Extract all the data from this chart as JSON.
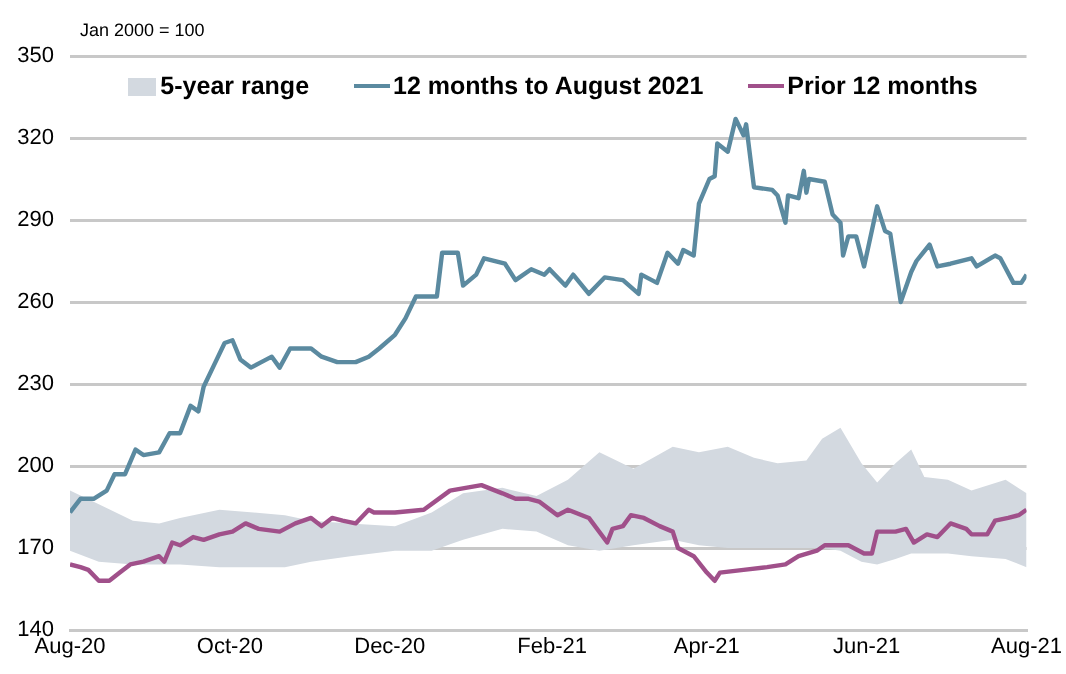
{
  "chart_data": {
    "type": "line",
    "annotations": [
      "Jan 2000 = 100"
    ],
    "xlim": [
      "2020-08-01",
      "2021-08-01"
    ],
    "xticks": [
      {
        "value": "2020-08-01",
        "label": "Aug-20"
      },
      {
        "value": "2020-10-01",
        "label": "Oct-20"
      },
      {
        "value": "2020-12-01",
        "label": "Dec-20"
      },
      {
        "value": "2021-02-01",
        "label": "Feb-21"
      },
      {
        "value": "2021-04-01",
        "label": "Apr-21"
      },
      {
        "value": "2021-06-01",
        "label": "Jun-21"
      },
      {
        "value": "2021-08-01",
        "label": "Aug-21"
      }
    ],
    "ylim": [
      140,
      350
    ],
    "yticks": [
      140,
      170,
      200,
      230,
      260,
      290,
      320,
      350
    ],
    "grid": "y",
    "legend": "top",
    "marker": "none",
    "series": [
      {
        "name": "5-year range",
        "type": "area",
        "color": "#d3d9e0",
        "x": [
          "2020-08-01",
          "2020-08-12",
          "2020-08-25",
          "2020-09-04",
          "2020-09-12",
          "2020-09-27",
          "2020-10-10",
          "2020-10-22",
          "2020-11-01",
          "2020-11-16",
          "2020-12-03",
          "2020-12-17",
          "2020-12-29",
          "2021-01-13",
          "2021-01-26",
          "2021-02-07",
          "2021-02-19",
          "2021-03-04",
          "2021-03-19",
          "2021-03-29",
          "2021-04-09",
          "2021-04-19",
          "2021-04-28",
          "2021-05-09",
          "2021-05-15",
          "2021-05-22",
          "2021-05-30",
          "2021-06-05",
          "2021-06-12",
          "2021-06-18",
          "2021-06-23",
          "2021-07-02",
          "2021-07-11",
          "2021-07-24",
          "2021-08-01"
        ],
        "values": [
          null,
          null,
          null,
          null,
          null,
          null,
          null,
          null,
          null,
          null,
          null,
          null,
          null,
          null,
          null,
          null,
          null,
          null,
          null,
          null,
          null,
          null,
          null,
          null,
          null,
          null,
          null,
          null,
          null,
          null,
          null,
          null,
          null,
          null,
          null
        ],
        "upper": [
          191,
          186,
          180,
          179,
          181,
          184,
          183,
          182,
          180,
          179,
          178,
          183,
          190,
          192,
          189,
          195,
          205,
          199,
          207,
          205,
          207,
          203,
          201,
          202,
          210,
          214,
          201,
          194,
          201,
          206,
          196,
          195,
          191,
          195,
          190
        ],
        "lower": [
          169,
          165,
          164,
          164,
          164,
          163,
          163,
          163,
          165,
          167,
          169,
          169,
          173,
          177,
          176,
          171,
          169,
          171,
          173,
          171,
          170,
          170,
          170,
          170,
          170,
          169,
          165,
          164,
          166,
          168,
          168,
          168,
          167,
          166,
          163
        ]
      },
      {
        "name": "12 months to August 2021",
        "color": "#5b8aa0",
        "x": [
          "2020-08-01",
          "2020-08-05",
          "2020-08-10",
          "2020-08-15",
          "2020-08-18",
          "2020-08-22",
          "2020-08-26",
          "2020-08-29",
          "2020-09-04",
          "2020-09-08",
          "2020-09-12",
          "2020-09-16",
          "2020-09-19",
          "2020-09-21",
          "2020-09-25",
          "2020-09-29",
          "2020-10-02",
          "2020-10-05",
          "2020-10-09",
          "2020-10-13",
          "2020-10-17",
          "2020-10-20",
          "2020-10-24",
          "2020-11-01",
          "2020-11-05",
          "2020-11-11",
          "2020-11-18",
          "2020-11-23",
          "2020-11-27",
          "2020-12-03",
          "2020-12-07",
          "2020-12-11",
          "2020-12-15",
          "2020-12-19",
          "2020-12-21",
          "2020-12-27",
          "2020-12-29",
          "2021-01-03",
          "2021-01-06",
          "2021-01-14",
          "2021-01-18",
          "2021-01-24",
          "2021-01-29",
          "2021-01-31",
          "2021-02-06",
          "2021-02-09",
          "2021-02-15",
          "2021-02-21",
          "2021-02-28",
          "2021-03-06",
          "2021-03-07",
          "2021-03-13",
          "2021-03-17",
          "2021-03-21",
          "2021-03-23",
          "2021-03-27",
          "2021-03-29",
          "2021-04-02",
          "2021-04-04",
          "2021-04-05",
          "2021-04-09",
          "2021-04-12",
          "2021-04-15",
          "2021-04-16",
          "2021-04-19",
          "2021-04-26",
          "2021-04-28",
          "2021-05-01",
          "2021-05-02",
          "2021-05-06",
          "2021-05-08",
          "2021-05-09",
          "2021-05-10",
          "2021-05-16",
          "2021-05-19",
          "2021-05-22",
          "2021-05-23",
          "2021-05-25",
          "2021-05-28",
          "2021-05-31",
          "2021-06-05",
          "2021-06-08",
          "2021-06-10",
          "2021-06-14",
          "2021-06-18",
          "2021-06-20",
          "2021-06-25",
          "2021-06-28",
          "2021-07-03",
          "2021-07-11",
          "2021-07-13",
          "2021-07-20",
          "2021-07-22",
          "2021-07-27",
          "2021-07-30",
          "2021-08-01"
        ],
        "values": [
          183,
          188,
          188,
          191,
          197,
          197,
          206,
          204,
          205,
          212,
          212,
          222,
          220,
          229,
          237,
          245,
          246,
          239,
          236,
          238,
          240,
          236,
          243,
          243,
          240,
          238,
          238,
          240,
          243,
          248,
          254,
          262,
          262,
          262,
          278,
          278,
          266,
          270,
          276,
          274,
          268,
          272,
          270,
          272,
          266,
          270,
          263,
          269,
          268,
          263,
          270,
          267,
          278,
          274,
          279,
          277,
          296,
          305,
          306,
          318,
          315,
          327,
          321,
          325,
          302,
          301,
          299,
          289,
          299,
          298,
          308,
          300,
          305,
          304,
          292,
          289,
          277,
          284,
          284,
          273,
          295,
          286,
          285,
          260,
          271,
          275,
          281,
          273,
          274,
          276,
          273,
          277,
          276,
          267,
          267,
          270
        ]
      },
      {
        "name": "Prior 12 months",
        "color": "#a0508a",
        "x": [
          "2020-08-01",
          "2020-08-05",
          "2020-08-08",
          "2020-08-12",
          "2020-08-16",
          "2020-08-20",
          "2020-08-24",
          "2020-08-29",
          "2020-09-04",
          "2020-09-06",
          "2020-09-09",
          "2020-09-12",
          "2020-09-17",
          "2020-09-21",
          "2020-09-27",
          "2020-10-02",
          "2020-10-07",
          "2020-10-12",
          "2020-10-20",
          "2020-10-26",
          "2020-11-01",
          "2020-11-05",
          "2020-11-09",
          "2020-11-13",
          "2020-11-18",
          "2020-11-23",
          "2020-11-25",
          "2020-12-03",
          "2020-12-14",
          "2020-12-24",
          "2021-01-05",
          "2021-01-13",
          "2021-01-18",
          "2021-01-23",
          "2021-01-27",
          "2021-02-03",
          "2021-02-07",
          "2021-02-15",
          "2021-02-22",
          "2021-02-24",
          "2021-02-28",
          "2021-03-03",
          "2021-03-08",
          "2021-03-14",
          "2021-03-19",
          "2021-03-21",
          "2021-03-27",
          "2021-04-01",
          "2021-04-04",
          "2021-04-06",
          "2021-04-15",
          "2021-04-24",
          "2021-05-01",
          "2021-05-06",
          "2021-05-13",
          "2021-05-16",
          "2021-05-25",
          "2021-05-31",
          "2021-06-03",
          "2021-06-05",
          "2021-06-12",
          "2021-06-16",
          "2021-06-19",
          "2021-06-24",
          "2021-06-28",
          "2021-07-03",
          "2021-07-09",
          "2021-07-11",
          "2021-07-17",
          "2021-07-20",
          "2021-07-25",
          "2021-07-29",
          "2021-08-01"
        ],
        "values": [
          164,
          163,
          162,
          158,
          158,
          161,
          164,
          165,
          167,
          165,
          172,
          171,
          174,
          173,
          175,
          176,
          179,
          177,
          176,
          179,
          181,
          178,
          181,
          180,
          179,
          184,
          183,
          183,
          184,
          191,
          193,
          190,
          188,
          188,
          187,
          182,
          184,
          181,
          172,
          177,
          178,
          182,
          181,
          178,
          176,
          170,
          167,
          161,
          158,
          161,
          162,
          163,
          164,
          167,
          169,
          171,
          171,
          168,
          168,
          176,
          176,
          177,
          172,
          175,
          174,
          179,
          177,
          175,
          175,
          180,
          181,
          182,
          184
        ]
      }
    ]
  }
}
